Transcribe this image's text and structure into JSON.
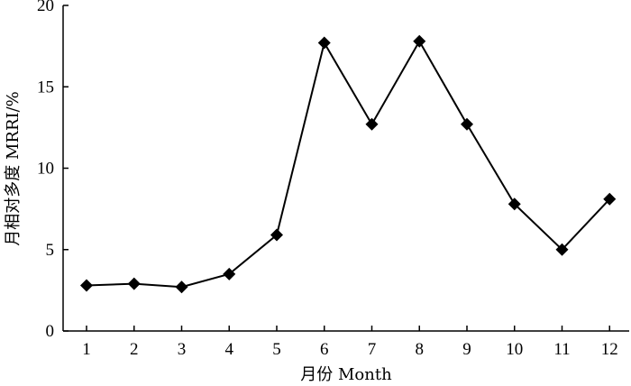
{
  "chart_data": {
    "type": "line",
    "title": "",
    "xlabel": "月份 Month",
    "ylabel": "月相对多度 MRRI/%",
    "x": [
      1,
      2,
      3,
      4,
      5,
      6,
      7,
      8,
      9,
      10,
      11,
      12
    ],
    "categories": [
      "1",
      "2",
      "3",
      "4",
      "5",
      "6",
      "7",
      "8",
      "9",
      "10",
      "11",
      "12"
    ],
    "series": [
      {
        "values": [
          2.8,
          2.9,
          2.7,
          3.5,
          5.9,
          17.7,
          12.7,
          17.8,
          12.7,
          7.8,
          5.0,
          8.1
        ]
      }
    ],
    "ylim": [
      0,
      20
    ],
    "yticks": [
      0,
      5,
      10,
      15,
      20
    ],
    "marker": "diamond",
    "grid": false,
    "legend": "none",
    "line_color": "#000000"
  }
}
